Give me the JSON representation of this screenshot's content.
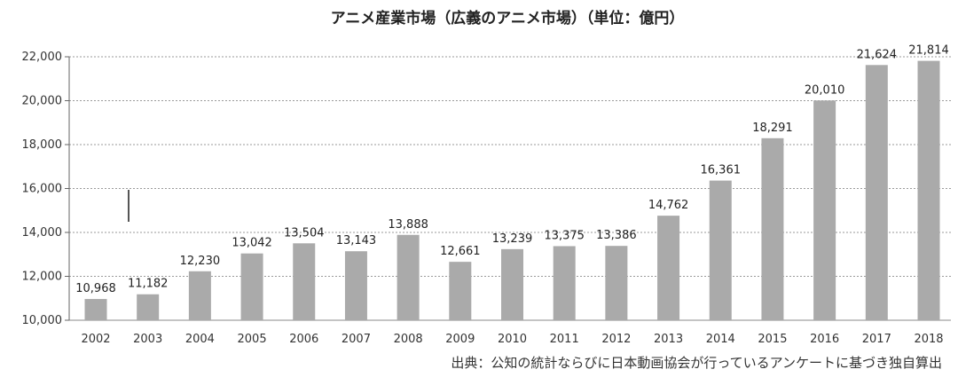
{
  "chart_data": {
    "type": "bar",
    "title": "アニメ産業市場（広義のアニメ市場）（単位：億円）",
    "categories": [
      "2002",
      "2003",
      "2004",
      "2005",
      "2006",
      "2007",
      "2008",
      "2009",
      "2010",
      "2011",
      "2012",
      "2013",
      "2014",
      "2015",
      "2016",
      "2017",
      "2018"
    ],
    "values": [
      10968,
      11182,
      12230,
      13042,
      13504,
      13143,
      13888,
      12661,
      13239,
      13375,
      13386,
      14762,
      16361,
      18291,
      20010,
      21624,
      21814
    ],
    "value_labels": [
      "10,968",
      "11,182",
      "12,230",
      "13,042",
      "13,504",
      "13,143",
      "13,888",
      "12,661",
      "13,239",
      "13,375",
      "13,386",
      "14,762",
      "16,361",
      "18,291",
      "20,010",
      "21,624",
      "21,814"
    ],
    "ylim": [
      10000,
      22000
    ],
    "yticks": [
      10000,
      12000,
      14000,
      16000,
      18000,
      20000,
      22000
    ],
    "ytick_labels": [
      "10,000",
      "12,000",
      "14,000",
      "16,000",
      "18,000",
      "20,000",
      "22,000"
    ],
    "xlabel": "",
    "ylabel": "",
    "grid": "dotted horizontal",
    "bar_color": "#aaaaaa",
    "source_note": "出典：公知の統計ならびに日本動画協会が行っているアンケートに基づき独自算出"
  }
}
